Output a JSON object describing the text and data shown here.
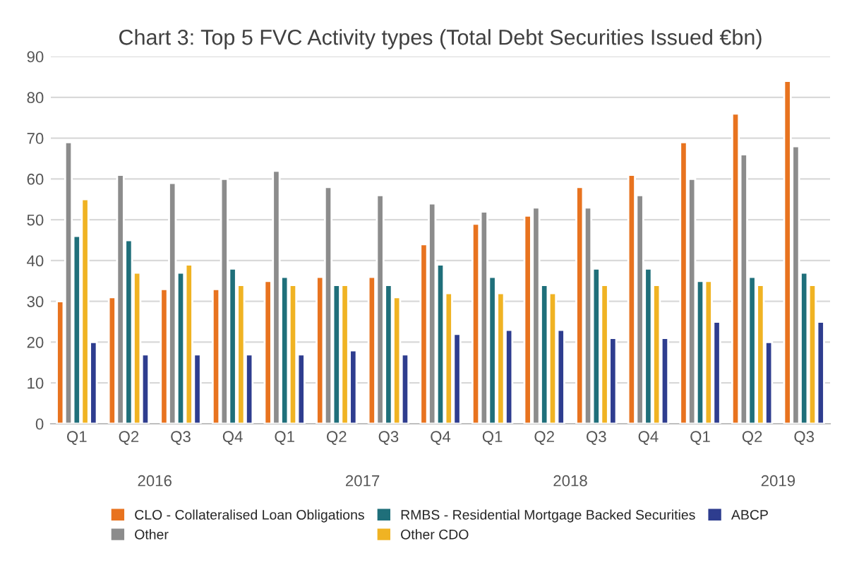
{
  "chart_data": {
    "type": "bar",
    "title": "Chart 3: Top 5 FVC Activity types (Total Debt Securities Issued €bn)",
    "categories": [
      "Q1",
      "Q2",
      "Q3",
      "Q4",
      "Q1",
      "Q2",
      "Q3",
      "Q4",
      "Q1",
      "Q2",
      "Q3",
      "Q4",
      "Q1",
      "Q2",
      "Q3"
    ],
    "annotations": [
      "2016",
      "2017",
      "2018",
      "2019"
    ],
    "series": [
      {
        "name": "CLO - Collateralised Loan Obligations",
        "color": "#e8731f",
        "values": [
          30,
          31,
          33,
          33,
          35,
          36,
          36,
          44,
          49,
          51,
          58,
          61,
          69,
          76,
          84
        ]
      },
      {
        "name": "Other",
        "color": "#8c8c8c",
        "values": [
          69,
          61,
          59,
          60,
          62,
          58,
          56,
          54,
          52,
          53,
          53,
          56,
          60,
          66,
          68
        ]
      },
      {
        "name": "RMBS - Residential Mortgage Backed Securities",
        "color": "#1f6f7a",
        "values": [
          46,
          45,
          37,
          38,
          36,
          34,
          34,
          39,
          36,
          34,
          38,
          38,
          35,
          36,
          37
        ]
      },
      {
        "name": "Other CDO",
        "color": "#f0b323",
        "values": [
          55,
          37,
          39,
          34,
          34,
          34,
          31,
          32,
          32,
          32,
          34,
          34,
          35,
          34,
          34
        ]
      },
      {
        "name": "ABCP",
        "color": "#2e3d8f",
        "values": [
          20,
          17,
          17,
          17,
          17,
          18,
          17,
          22,
          23,
          23,
          21,
          21,
          25,
          20,
          25
        ]
      }
    ],
    "ylim": [
      0,
      90
    ],
    "yticks": [
      0,
      10,
      20,
      30,
      40,
      50,
      60,
      70,
      80,
      90
    ],
    "grid": "y",
    "legend": "bottom"
  }
}
